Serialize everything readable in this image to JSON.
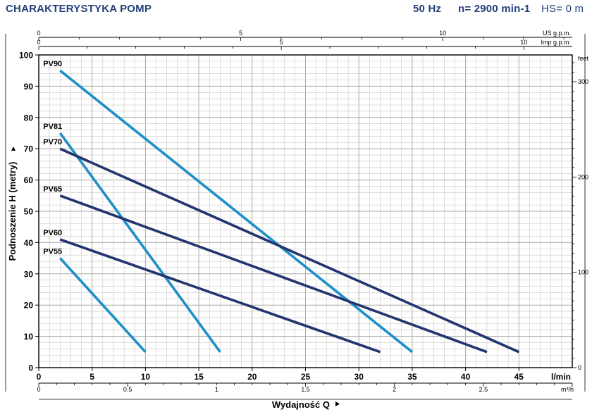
{
  "header": {
    "title": "CHARAKTERYSTYKA POMP",
    "frequency": "50 Hz",
    "speed": "n= 2900 min-1",
    "hs": "HS= 0 m"
  },
  "colors": {
    "light_series": "#1e8fc7",
    "dark_series": "#24346e",
    "header": "#23407a",
    "grid": "#c8c8c8"
  },
  "chart_data": {
    "type": "line",
    "ylabel": "Podnoszenie H (metry)",
    "xlabel": "Wydajność Q",
    "x_unit": "l/min",
    "x_unit_m3h": "m³/h",
    "y_unit_right": "feet",
    "x_unit_usgpm": "US g.p.m.",
    "x_unit_impgpm": "Imp g.p.m.",
    "xlim": [
      0,
      50
    ],
    "ylim": [
      0,
      100
    ],
    "grid": true,
    "x_ticks": [
      "0",
      "5",
      "10",
      "15",
      "20",
      "25",
      "30",
      "35",
      "40",
      "45"
    ],
    "y_ticks": [
      "0",
      "10",
      "20",
      "30",
      "40",
      "50",
      "60",
      "70",
      "80",
      "90",
      "100"
    ],
    "m3h_ticks": [
      "0",
      "0.5",
      "1",
      "1.5",
      "2",
      "2.5"
    ],
    "usgpm_ticks": [
      "0",
      "5",
      "10"
    ],
    "impgpm_ticks": [
      "0",
      "5",
      "10"
    ],
    "feet_ticks": [
      "0",
      "100",
      "200",
      "300"
    ],
    "series": [
      {
        "name": "PV90",
        "tone": "light",
        "x": [
          2,
          35
        ],
        "y": [
          95,
          5
        ]
      },
      {
        "name": "PV81",
        "tone": "light",
        "x": [
          2,
          17
        ],
        "y": [
          75,
          5
        ]
      },
      {
        "name": "PV70",
        "tone": "dark",
        "x": [
          2,
          45
        ],
        "y": [
          70,
          5
        ]
      },
      {
        "name": "PV65",
        "tone": "dark",
        "x": [
          2,
          42
        ],
        "y": [
          55,
          5
        ]
      },
      {
        "name": "PV60",
        "tone": "dark",
        "x": [
          2,
          32
        ],
        "y": [
          41,
          5
        ]
      },
      {
        "name": "PV55",
        "tone": "light",
        "x": [
          2,
          10
        ],
        "y": [
          35,
          5
        ]
      }
    ]
  }
}
